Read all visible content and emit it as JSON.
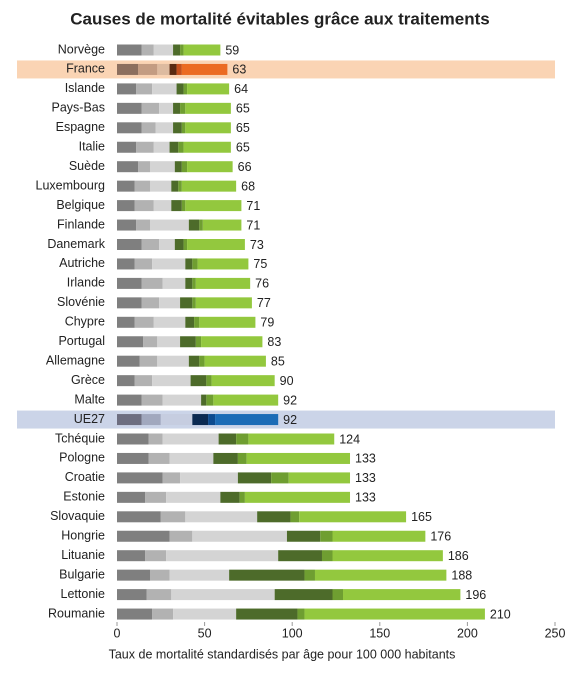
{
  "chart_data": {
    "type": "stacked-barh",
    "title": "Causes de mortalité évitables grâce aux traitements",
    "x_label": "Taux de mortalité standardisés par âge pour 100 000 habitants",
    "categories": [
      "Norvège",
      "France",
      "Islande",
      "Pays-Bas",
      "Espagne",
      "Italie",
      "Suède",
      "Luxembourg",
      "Belgique",
      "Finlande",
      "Danemark",
      "Autriche",
      "Irlande",
      "Slovénie",
      "Chypre",
      "Portugal",
      "Allemagne",
      "Grèce",
      "Malte",
      "UE27",
      "Tchéquie",
      "Pologne",
      "Croatie",
      "Estonie",
      "Slovaquie",
      "Hongrie",
      "Lituanie",
      "Bulgarie",
      "Lettonie",
      "Roumanie"
    ],
    "series": [
      {
        "color": "#7f7f7f",
        "values": [
          14,
          12,
          11,
          14,
          14,
          11,
          12,
          10,
          10,
          11,
          14,
          10,
          14,
          14,
          10,
          15,
          13,
          10,
          14,
          14,
          18,
          18,
          26,
          16,
          25,
          30,
          16,
          19,
          17,
          20
        ]
      },
      {
        "color": "#b2b2b2",
        "values": [
          7,
          11,
          9,
          10,
          8,
          10,
          7,
          9,
          11,
          8,
          10,
          10,
          12,
          10,
          11,
          8,
          10,
          10,
          12,
          11,
          8,
          12,
          10,
          12,
          14,
          13,
          12,
          11,
          14,
          12
        ]
      },
      {
        "color": "#d4d4d4",
        "values": [
          11,
          7,
          14,
          8,
          10,
          9,
          14,
          12,
          10,
          22,
          9,
          19,
          13,
          12,
          18,
          13,
          18,
          22,
          22,
          18,
          32,
          25,
          33,
          31,
          41,
          54,
          64,
          34,
          59,
          36
        ]
      },
      {
        "color": "#4d6b2a",
        "values": [
          4,
          4,
          4,
          4,
          5,
          5,
          4,
          4,
          6,
          6,
          5,
          4,
          4,
          7,
          5,
          9,
          6,
          9,
          3,
          9,
          10,
          14,
          19,
          11,
          19,
          19,
          25,
          43,
          33,
          35
        ]
      },
      {
        "color": "#6f9e31",
        "values": [
          2,
          3,
          2,
          3,
          2,
          3,
          3,
          2,
          2,
          2,
          2,
          3,
          2,
          2,
          3,
          3,
          3,
          3,
          4,
          4,
          7,
          5,
          10,
          3,
          5,
          7,
          6,
          6,
          6,
          4
        ]
      },
      {
        "color": "#93c83e",
        "values": [
          21,
          26,
          24,
          26,
          26,
          27,
          26,
          31,
          32,
          22,
          33,
          29,
          31,
          32,
          32,
          35,
          35,
          36,
          37,
          36,
          49,
          59,
          35,
          60,
          61,
          53,
          63,
          75,
          67,
          103
        ]
      }
    ],
    "totals": [
      59,
      63,
      64,
      65,
      65,
      65,
      66,
      68,
      71,
      71,
      73,
      75,
      76,
      77,
      79,
      83,
      85,
      90,
      92,
      92,
      124,
      133,
      133,
      133,
      165,
      176,
      186,
      188,
      196,
      210
    ],
    "highlights": [
      {
        "index": 1,
        "band_color": "#fad4b4",
        "colors": [
          "#8c6f5e",
          "#c39c82",
          "#ddbba0",
          "#5a2b12",
          "#c4501c",
          "#eb6b22"
        ]
      },
      {
        "index": 19,
        "band_color": "#cbd4e8",
        "colors": [
          "#6d6e80",
          "#a1a8be",
          "#c6cde0",
          "#0b2a52",
          "#0d4b8f",
          "#1c6cb6"
        ]
      }
    ],
    "xlim": [
      0,
      250
    ],
    "xticks": [
      0,
      50,
      100,
      150,
      200,
      250
    ]
  }
}
